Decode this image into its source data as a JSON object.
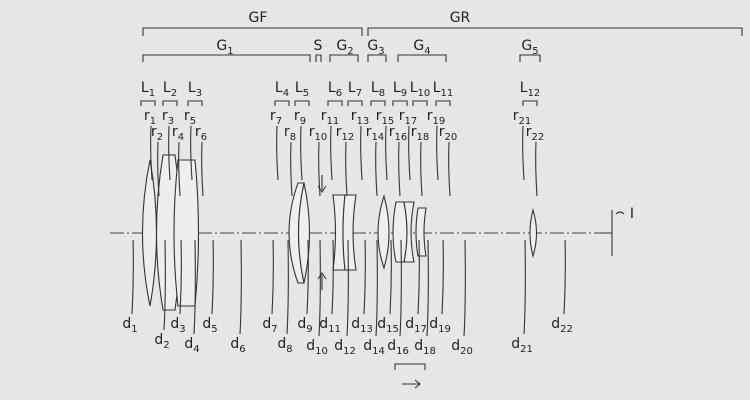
{
  "groups": {
    "front": "GF",
    "rear": "GR",
    "g1": "G1",
    "stop": "S",
    "g2": "G2",
    "g3": "G3",
    "g4": "G4",
    "g5": "G5"
  },
  "lenses": [
    "L1",
    "L2",
    "L3",
    "L4",
    "L5",
    "L6",
    "L7",
    "L8",
    "L9",
    "L10",
    "L11",
    "L12"
  ],
  "surfaces": [
    "r1",
    "r2",
    "r3",
    "r4",
    "r5",
    "r6",
    "r7",
    "r8",
    "r9",
    "r10",
    "r11",
    "r12",
    "r13",
    "r14",
    "r15",
    "r16",
    "r17",
    "r18",
    "r19",
    "r20",
    "r21",
    "r22"
  ],
  "distances": [
    "d1",
    "d2",
    "d3",
    "d4",
    "d5",
    "d6",
    "d7",
    "d8",
    "d9",
    "d10",
    "d11",
    "d12",
    "d13",
    "d14",
    "d15",
    "d16",
    "d17",
    "d18",
    "d19",
    "d20",
    "d21",
    "d22"
  ],
  "image_plane": "I"
}
